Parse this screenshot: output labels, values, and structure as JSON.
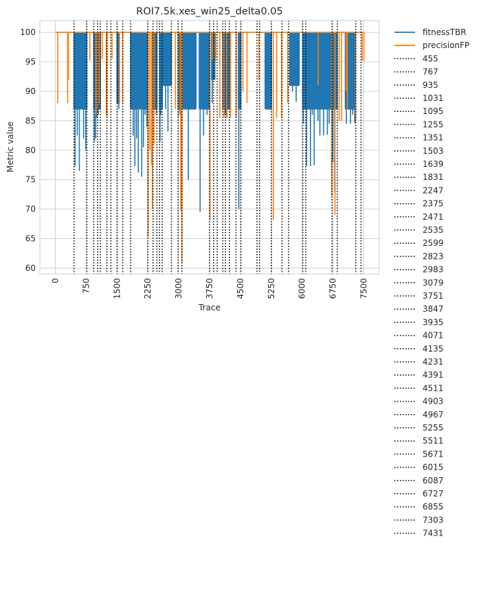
{
  "chart_data": {
    "type": "line",
    "title": "ROI7.5k.xes_win25_delta0.05",
    "xlabel": "Trace",
    "ylabel": "Metric value",
    "xlim": [
      -375,
      7875
    ],
    "ylim": [
      59,
      102
    ],
    "xticks": [
      0,
      750,
      1500,
      2250,
      3000,
      3750,
      4500,
      5250,
      6000,
      6750,
      7500
    ],
    "xtick_labels": [
      "0",
      "750",
      "1500",
      "2250",
      "3000",
      "3750",
      "4500",
      "5250",
      "6000",
      "6750",
      "7500"
    ],
    "yticks": [
      60,
      65,
      70,
      75,
      80,
      85,
      90,
      95,
      100
    ],
    "ytick_labels": [
      "60",
      "65",
      "70",
      "75",
      "80",
      "85",
      "90",
      "95",
      "100"
    ],
    "grid": true,
    "legend_position": "outside-right",
    "series": [
      {
        "name": "fitnessTBR",
        "color": "#1f77b4",
        "blocks": [
          {
            "x0": 455,
            "x1": 767,
            "y": 87,
            "dips": [
              77.3,
              82.5,
              76.5,
              87,
              82,
              80
            ]
          },
          {
            "x0": 935,
            "x1": 1095,
            "y": 87,
            "dips": [
              81.5,
              82,
              85.5,
              86,
              87
            ]
          },
          {
            "x0": 1500,
            "x1": 1560,
            "y": 88,
            "dips": [
              88,
              87
            ]
          },
          {
            "x0": 1831,
            "x1": 2247,
            "y": 87,
            "dips": [
              87,
              82.5,
              77.3,
              82,
              76.2,
              87,
              75.5,
              80.5,
              86,
              84
            ]
          },
          {
            "x0": 2375,
            "x1": 2471,
            "y": 87,
            "dips": [
              87,
              88,
              86
            ]
          },
          {
            "x0": 2535,
            "x1": 2600,
            "y": 87,
            "dips": [
              81.5,
              86,
              87
            ]
          },
          {
            "x0": 2600,
            "x1": 2823,
            "y": 91,
            "dips": [
              91,
              87,
              83.2,
              91
            ]
          },
          {
            "x0": 2983,
            "x1": 3050,
            "y": 87,
            "dips": [
              87,
              86
            ]
          },
          {
            "x0": 3100,
            "x1": 3420,
            "y": 87,
            "dips": [
              90,
              87,
              75,
              87,
              90,
              88
            ]
          },
          {
            "x0": 3500,
            "x1": 3751,
            "y": 87,
            "dips": [
              69.5,
              87,
              82.5,
              87,
              86,
              87
            ]
          },
          {
            "x0": 3800,
            "x1": 3880,
            "y": 92,
            "dips": [
              88,
              92,
              95
            ]
          },
          {
            "x0": 4071,
            "x1": 4231,
            "y": 87,
            "dips": [
              87,
              86,
              85.5,
              87
            ]
          },
          {
            "x0": 4450,
            "x1": 4511,
            "y": 87,
            "dips": [
              70,
              87,
              90
            ]
          },
          {
            "x0": 5100,
            "x1": 5255,
            "y": 87,
            "dips": [
              87,
              87,
              87
            ]
          },
          {
            "x0": 5700,
            "x1": 5830,
            "y": 91,
            "dips": [
              91,
              90,
              91
            ]
          },
          {
            "x0": 5830,
            "x1": 5930,
            "y": 91,
            "dips": [
              88.2,
              91
            ]
          },
          {
            "x0": 6015,
            "x1": 6087,
            "y": 87,
            "dips": [
              84.5,
              87
            ]
          },
          {
            "x0": 6087,
            "x1": 6500,
            "y": 87,
            "dips": [
              77.3,
              87,
              77.3,
              86,
              77.5,
              87,
              85,
              82.5,
              87
            ]
          },
          {
            "x0": 6500,
            "x1": 6727,
            "y": 87,
            "dips": [
              82.5,
              87,
              82.6,
              84.5,
              87
            ]
          },
          {
            "x0": 6727,
            "x1": 6855,
            "y": 87,
            "dips": [
              78,
              73,
              87
            ]
          },
          {
            "x0": 7050,
            "x1": 7303,
            "y": 87,
            "dips": [
              84.5,
              87,
              84.5,
              86,
              84.6
            ]
          }
        ]
      },
      {
        "name": "precisionFP",
        "color": "#ff7f0e",
        "drops": [
          {
            "x": 60,
            "y": 88
          },
          {
            "x": 300,
            "y": 88
          },
          {
            "x": 320,
            "y": 92
          },
          {
            "x": 840,
            "y": 95.2
          },
          {
            "x": 990,
            "y": 86
          },
          {
            "x": 1030,
            "y": 86
          },
          {
            "x": 1070,
            "y": 88
          },
          {
            "x": 1140,
            "y": 95.5
          },
          {
            "x": 1240,
            "y": 86
          },
          {
            "x": 1260,
            "y": 85.5
          },
          {
            "x": 1380,
            "y": 95.5
          },
          {
            "x": 1560,
            "y": 88
          },
          {
            "x": 1640,
            "y": 88
          },
          {
            "x": 2260,
            "y": 65.3
          },
          {
            "x": 2300,
            "y": 80
          },
          {
            "x": 2340,
            "y": 77.5
          },
          {
            "x": 2360,
            "y": 70
          },
          {
            "x": 2400,
            "y": 81
          },
          {
            "x": 2920,
            "y": 87
          },
          {
            "x": 2990,
            "y": 85.5
          },
          {
            "x": 3050,
            "y": 69.8
          },
          {
            "x": 3079,
            "y": 61
          },
          {
            "x": 3760,
            "y": 68.2
          },
          {
            "x": 3820,
            "y": 95.4
          },
          {
            "x": 3900,
            "y": 95.2
          },
          {
            "x": 4000,
            "y": 85.5
          },
          {
            "x": 4100,
            "y": 85.5
          },
          {
            "x": 4160,
            "y": 85.5
          },
          {
            "x": 4260,
            "y": 85.5
          },
          {
            "x": 4400,
            "y": 85.5
          },
          {
            "x": 4560,
            "y": 90
          },
          {
            "x": 4660,
            "y": 88
          },
          {
            "x": 4950,
            "y": 92
          },
          {
            "x": 5300,
            "y": 68.2
          },
          {
            "x": 5380,
            "y": 85.5
          },
          {
            "x": 5500,
            "y": 85.5
          },
          {
            "x": 5650,
            "y": 88
          },
          {
            "x": 6390,
            "y": 91
          },
          {
            "x": 6720,
            "y": 72.2
          },
          {
            "x": 6800,
            "y": 69
          },
          {
            "x": 6900,
            "y": 85
          },
          {
            "x": 6960,
            "y": 85
          },
          {
            "x": 7070,
            "y": 90
          },
          {
            "x": 7100,
            "y": 87
          },
          {
            "x": 7300,
            "y": 84.8
          },
          {
            "x": 7460,
            "y": 95.2
          },
          {
            "x": 7500,
            "y": 95.2
          }
        ]
      }
    ],
    "vlines": [
      455,
      767,
      935,
      1031,
      1095,
      1255,
      1351,
      1503,
      1639,
      1831,
      2247,
      2375,
      2471,
      2535,
      2599,
      2823,
      2983,
      3079,
      3751,
      3847,
      3935,
      4071,
      4135,
      4231,
      4391,
      4511,
      4903,
      4967,
      5255,
      5511,
      5671,
      6015,
      6087,
      6727,
      6855,
      7303,
      7431
    ],
    "vline_style": "dotted",
    "vline_color": "#000000",
    "legend_entries": [
      "fitnessTBR",
      "precisionFP",
      "455",
      "767",
      "935",
      "1031",
      "1095",
      "1255",
      "1351",
      "1503",
      "1639",
      "1831",
      "2247",
      "2375",
      "2471",
      "2535",
      "2599",
      "2823",
      "2983",
      "3079",
      "3751",
      "3847",
      "3935",
      "4071",
      "4135",
      "4231",
      "4391",
      "4511",
      "4903",
      "4967",
      "5255",
      "5511",
      "5671",
      "6015",
      "6087",
      "6727",
      "6855",
      "7303",
      "7431"
    ]
  }
}
